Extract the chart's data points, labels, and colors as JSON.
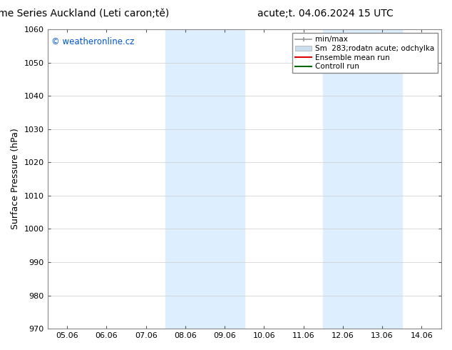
{
  "title_left": "ENS Time Series Auckland (Leti caron;tě)",
  "title_right": "acute;t. 04.06.2024 15 UTC",
  "ylabel": "Surface Pressure (hPa)",
  "ylim": [
    970,
    1060
  ],
  "yticks": [
    970,
    980,
    990,
    1000,
    1010,
    1020,
    1030,
    1040,
    1050,
    1060
  ],
  "xtick_labels": [
    "05.06",
    "06.06",
    "07.06",
    "08.06",
    "09.06",
    "10.06",
    "11.06",
    "12.06",
    "13.06",
    "14.06"
  ],
  "shade_regions": [
    {
      "start": 3,
      "end": 5
    },
    {
      "start": 7,
      "end": 9
    }
  ],
  "shade_color": "#ddeeff",
  "watermark": "© weatheronline.cz",
  "watermark_color": "#0055cc",
  "legend_entries": [
    {
      "label": "min/max",
      "color": "#999999",
      "lw": 1.2
    },
    {
      "label": "Sm  283;rodatn acute; odchylka",
      "color": "#ccddee",
      "lw": 6
    },
    {
      "label": "Ensemble mean run",
      "color": "#dd0000",
      "lw": 1.5
    },
    {
      "label": "Controll run",
      "color": "#006600",
      "lw": 1.5
    }
  ],
  "background_color": "#ffffff",
  "plot_bg_color": "#ffffff",
  "grid_color": "#cccccc",
  "title_fontsize": 10,
  "axis_label_fontsize": 9,
  "tick_fontsize": 8,
  "fig_width": 6.34,
  "fig_height": 4.9,
  "dpi": 100
}
